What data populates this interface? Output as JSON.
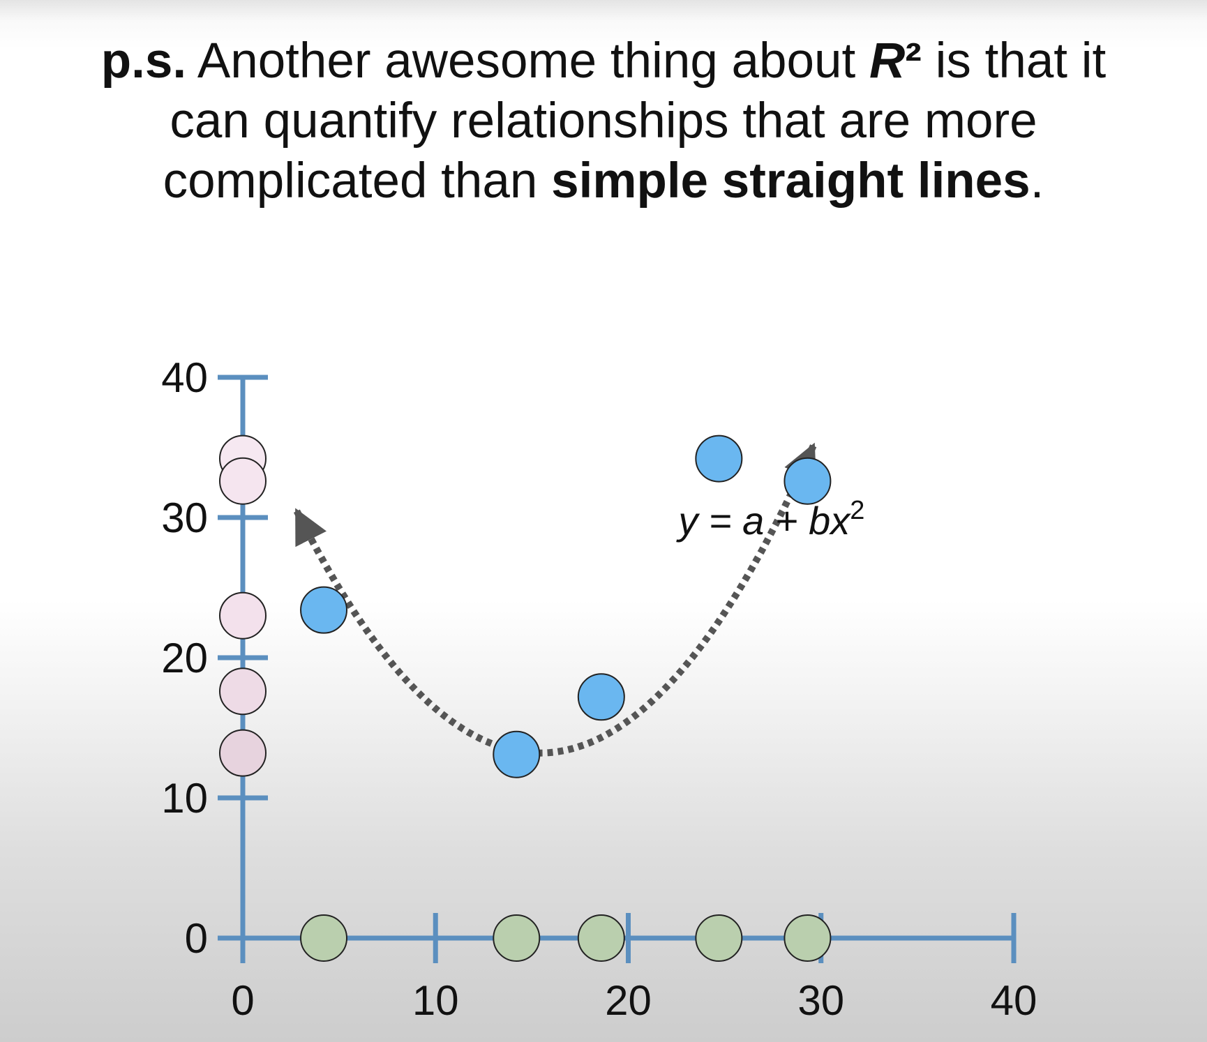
{
  "caption": {
    "lead": "p.s.",
    "text1": " Another awesome thing about ",
    "r_symbol": "R",
    "r_sup": "²",
    "text2": " is that it",
    "line2": "can quantify relationships that are more",
    "line3_start": "complicated than ",
    "line3_bold": "simple straight lines",
    "line3_end": "."
  },
  "chart_data": {
    "type": "scatter",
    "x_ticks": [
      "0",
      "10",
      "20",
      "30",
      "40"
    ],
    "y_ticks": [
      "0",
      "10",
      "20",
      "30",
      "40"
    ],
    "xlim": [
      0,
      40
    ],
    "ylim": [
      0,
      40
    ],
    "grid": false,
    "points": [
      {
        "x": 4.2,
        "y": 23.4
      },
      {
        "x": 14.2,
        "y": 13.1
      },
      {
        "x": 18.6,
        "y": 17.2
      },
      {
        "x": 24.7,
        "y": 34.2
      },
      {
        "x": 29.3,
        "y": 32.6
      }
    ],
    "x_projection_points": [
      4.2,
      14.2,
      18.6,
      24.7,
      29.3
    ],
    "y_projection_points": [
      34.2,
      32.6,
      23.0,
      17.6,
      13.2
    ],
    "curve": {
      "equation_prefix": "y = a + bx",
      "equation_sup": "2",
      "vertex": [
        15.4,
        13.2
      ],
      "x_start": 2.8,
      "x_end": 29.6,
      "style": "dotted",
      "arrows": "both-ends"
    },
    "colors": {
      "axis": "#5b8fbf",
      "point": "#6ab7f0",
      "x_projection": "#bacfae",
      "y_projection": "#f3e1ec",
      "curve": "#555555"
    }
  }
}
